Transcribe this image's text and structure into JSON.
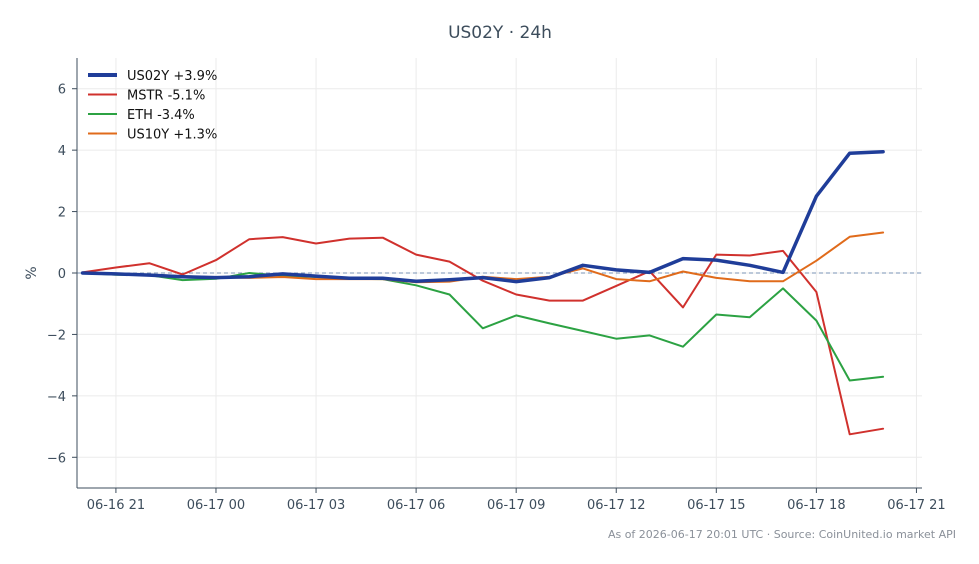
{
  "chart_data": {
    "type": "line",
    "title": "US02Y · 24h",
    "ylabel": "%",
    "xlabel": "",
    "ylim": [
      -7,
      7
    ],
    "yticks": [
      -6,
      -4,
      -2,
      0,
      2,
      4,
      6
    ],
    "xlim": [
      "2026-06-16 19:50",
      "2026-06-17 21:10"
    ],
    "xticks": [
      {
        "t": "2026-06-16 21:00",
        "label": "06-16 21"
      },
      {
        "t": "2026-06-17 00:00",
        "label": "06-17 00"
      },
      {
        "t": "2026-06-17 03:00",
        "label": "06-17 03"
      },
      {
        "t": "2026-06-17 06:00",
        "label": "06-17 06"
      },
      {
        "t": "2026-06-17 09:00",
        "label": "06-17 09"
      },
      {
        "t": "2026-06-17 12:00",
        "label": "06-17 12"
      },
      {
        "t": "2026-06-17 15:00",
        "label": "06-17 15"
      },
      {
        "t": "2026-06-17 18:00",
        "label": "06-17 18"
      },
      {
        "t": "2026-06-17 21:00",
        "label": "06-17 21"
      }
    ],
    "x": [
      "2026-06-16 20:00",
      "2026-06-16 21:00",
      "2026-06-16 22:00",
      "2026-06-16 23:00",
      "2026-06-17 00:00",
      "2026-06-17 01:00",
      "2026-06-17 02:00",
      "2026-06-17 03:00",
      "2026-06-17 04:00",
      "2026-06-17 05:00",
      "2026-06-17 06:00",
      "2026-06-17 07:00",
      "2026-06-17 08:00",
      "2026-06-17 09:00",
      "2026-06-17 10:00",
      "2026-06-17 11:00",
      "2026-06-17 12:00",
      "2026-06-17 13:00",
      "2026-06-17 14:00",
      "2026-06-17 15:00",
      "2026-06-17 16:00",
      "2026-06-17 17:00",
      "2026-06-17 18:00",
      "2026-06-17 19:00",
      "2026-06-17 20:00"
    ],
    "zero_line": {
      "value": 0,
      "color": "#7a93b5",
      "style": "dashed"
    },
    "grid": true,
    "legend_position": "top-left",
    "series": [
      {
        "name": "US02Y +3.9%",
        "color": "#1f3d99",
        "emphasis": true,
        "values": [
          0.0,
          -0.03,
          -0.07,
          -0.12,
          -0.15,
          -0.12,
          -0.03,
          -0.1,
          -0.17,
          -0.17,
          -0.27,
          -0.22,
          -0.15,
          -0.28,
          -0.15,
          0.25,
          0.1,
          0.02,
          0.47,
          0.42,
          0.25,
          0.02,
          2.5,
          3.9,
          3.95
        ]
      },
      {
        "name": "MSTR -5.1%",
        "color": "#d0312d",
        "values": [
          0.02,
          0.18,
          0.32,
          -0.05,
          0.42,
          1.1,
          1.17,
          0.96,
          1.12,
          1.15,
          0.6,
          0.37,
          -0.25,
          -0.7,
          -0.9,
          -0.9,
          -0.42,
          0.06,
          -1.12,
          0.6,
          0.57,
          0.72,
          -0.62,
          -5.25,
          -5.07
        ]
      },
      {
        "name": "ETH -3.4%",
        "color": "#2ca243",
        "values": [
          0.0,
          -0.06,
          -0.07,
          -0.23,
          -0.19,
          0.0,
          -0.09,
          -0.13,
          -0.19,
          -0.2,
          -0.4,
          -0.7,
          -1.8,
          -1.38,
          -1.64,
          -1.89,
          -2.14,
          -2.03,
          -2.4,
          -1.35,
          -1.44,
          -0.5,
          -1.55,
          -3.5,
          -3.38
        ]
      },
      {
        "name": "US10Y +1.3%",
        "color": "#e06b1b",
        "values": [
          0.0,
          -0.04,
          -0.06,
          -0.1,
          -0.14,
          -0.16,
          -0.13,
          -0.2,
          -0.2,
          -0.2,
          -0.3,
          -0.28,
          -0.12,
          -0.2,
          -0.12,
          0.15,
          -0.2,
          -0.27,
          0.05,
          -0.16,
          -0.27,
          -0.27,
          0.4,
          1.18,
          1.32
        ]
      }
    ],
    "footer": "As of 2026-06-17 20:01 UTC · Source: CoinUnited.io market API"
  }
}
